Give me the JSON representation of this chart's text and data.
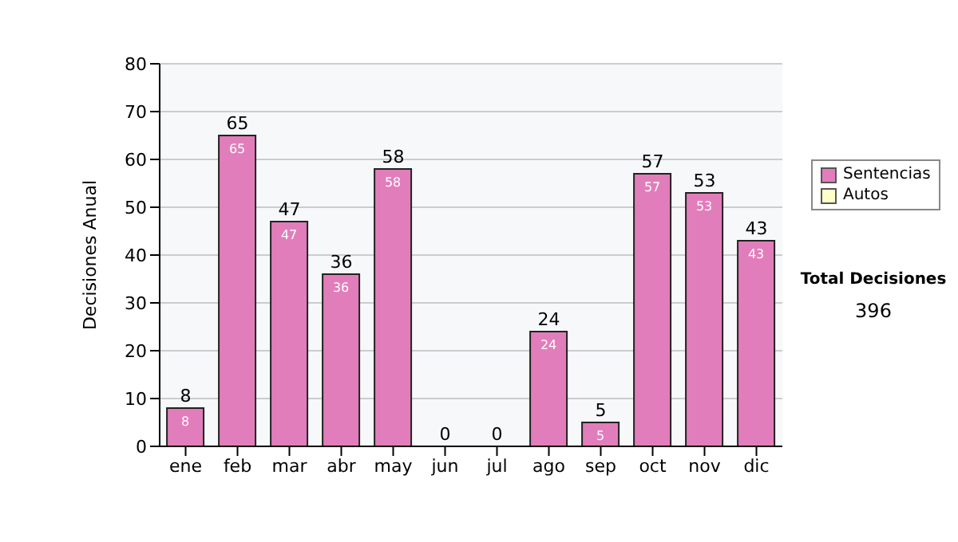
{
  "chart_data": {
    "type": "bar",
    "ylabel": "Decisiones Anual",
    "categories": [
      "ene",
      "feb",
      "mar",
      "abr",
      "may",
      "jun",
      "jul",
      "ago",
      "sep",
      "oct",
      "nov",
      "dic"
    ],
    "series": [
      {
        "name": "Sentencias",
        "color": "#e27dbb",
        "values": [
          8,
          65,
          47,
          36,
          58,
          0,
          0,
          24,
          5,
          57,
          53,
          43
        ],
        "value_labels": [
          "8",
          "65",
          "47",
          "36",
          "58",
          null,
          null,
          "24",
          "5",
          "57",
          "53",
          "43"
        ]
      },
      {
        "name": "Autos",
        "color": "#ffffcc",
        "values": [
          null,
          null,
          null,
          null,
          null,
          null,
          null,
          null,
          null,
          null,
          null,
          null
        ]
      }
    ],
    "stacked": true,
    "totals": [
      "8",
      "65",
      "47",
      "36",
      "58",
      "0",
      "0",
      "24",
      "5",
      "57",
      "53",
      "43"
    ],
    "ylim": [
      0,
      80
    ],
    "yticks": [
      0,
      10,
      20,
      30,
      40,
      50,
      60,
      70,
      80
    ],
    "grid": "y",
    "legend": "right",
    "annotations": [
      "Total Decisiones",
      "396"
    ]
  }
}
